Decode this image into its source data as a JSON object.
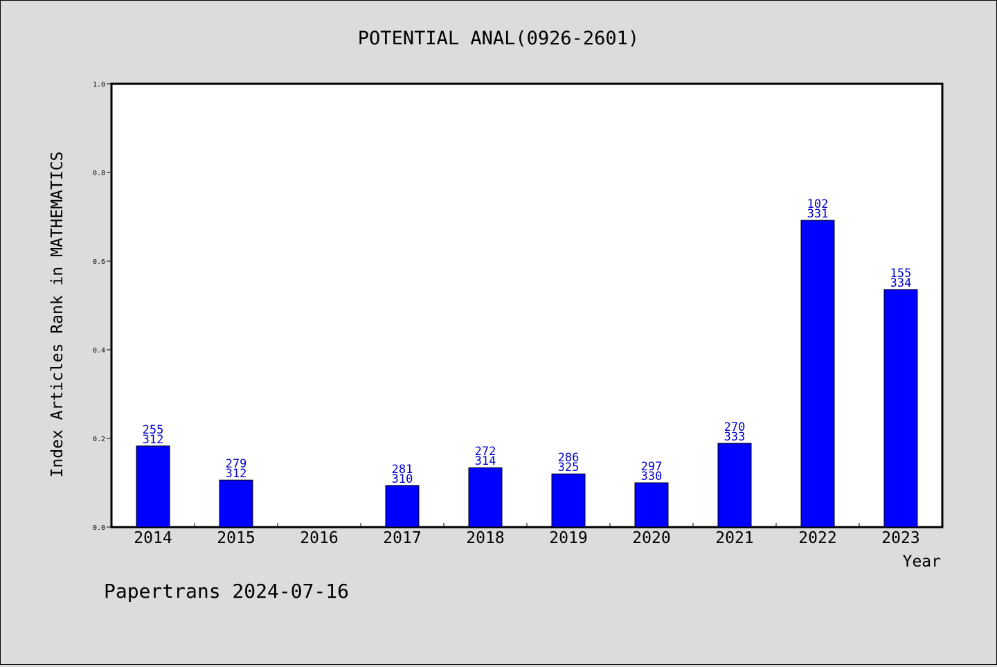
{
  "chart_data": {
    "type": "bar",
    "title": "POTENTIAL ANAL(0926-2601)",
    "xlabel": "Year",
    "ylabel": "Index Articles Rank in MATHEMATICS",
    "ylim": [
      0.0,
      1.0
    ],
    "yticks": [
      "0.0",
      "0.2",
      "0.4",
      "0.6",
      "0.8",
      "1.0"
    ],
    "categories": [
      "2014",
      "2015",
      "2016",
      "2017",
      "2018",
      "2019",
      "2020",
      "2021",
      "2022",
      "2023"
    ],
    "values": [
      0.183,
      0.106,
      null,
      0.094,
      0.134,
      0.12,
      0.1,
      0.189,
      0.692,
      0.536
    ],
    "labels_top": [
      "255",
      "279",
      "",
      "281",
      "272",
      "286",
      "297",
      "270",
      "102",
      "155"
    ],
    "labels_bottom": [
      "312",
      "312",
      "",
      "310",
      "314",
      "325",
      "330",
      "333",
      "331",
      "334"
    ],
    "bar_color": "#0000ff",
    "label_color": "#0000cc",
    "grid": false
  },
  "footer": "Papertrans 2024-07-16"
}
